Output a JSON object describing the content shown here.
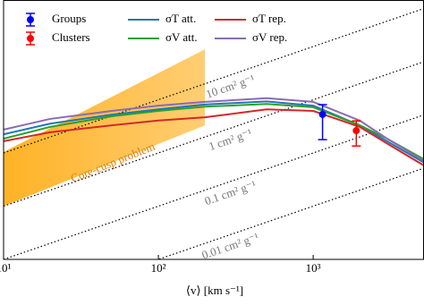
{
  "chart_data": {
    "type": "line",
    "xlabel": "⟨v⟩ [km s⁻¹]",
    "xscale": "log",
    "yscale": "log",
    "xlim": [
      10,
      5200
    ],
    "ylim": [
      1,
      75000
    ],
    "xticks": [
      {
        "value": 10,
        "label": "10¹"
      },
      {
        "value": 100,
        "label": "10²"
      },
      {
        "value": 1000,
        "label": "10³"
      }
    ],
    "x": [
      10,
      20,
      50,
      100,
      200,
      500,
      1000,
      2000,
      3000,
      5200
    ],
    "series": [
      {
        "name": "σT att.",
        "color": "#1f77b4",
        "values": [
          224,
          355,
          525,
          660,
          813,
          933,
          776,
          331,
          166,
          66
        ]
      },
      {
        "name": "σV att.",
        "color": "#2ca02c",
        "values": [
          186,
          309,
          490,
          617,
          741,
          832,
          724,
          331,
          186,
          76
        ]
      },
      {
        "name": "σT rep.",
        "color": "#d62728",
        "values": [
          166,
          245,
          331,
          407,
          468,
          660,
          617,
          309,
          151,
          58
        ]
      },
      {
        "name": "σV rep.",
        "color": "#8c6bb1",
        "values": [
          275,
          437,
          617,
          776,
          912,
          1072,
          912,
          407,
          186,
          71
        ]
      }
    ],
    "points": [
      {
        "name": "Groups",
        "color": "#0000ff",
        "x": 1150,
        "y": 530,
        "y_low": 178,
        "y_high": 810
      },
      {
        "name": "Clusters",
        "color": "#ff0000",
        "x": 1900,
        "y": 263,
        "y_low": 135,
        "y_high": 400
      }
    ],
    "reference_lines": [
      {
        "sigma": 10,
        "label": "10 cm² g⁻¹"
      },
      {
        "sigma": 1,
        "label": "1 cm² g⁻¹"
      },
      {
        "sigma": 0.1,
        "label": "0.1 cm² g⁻¹"
      },
      {
        "sigma": 0.01,
        "label": "0.01 cm² g⁻¹"
      }
    ],
    "band": {
      "label": "Core-cusp problem",
      "color": "#ffa500",
      "x": [
        10,
        200
      ],
      "lower": [
        10,
        331
      ],
      "upper": [
        104,
        8900
      ]
    }
  }
}
